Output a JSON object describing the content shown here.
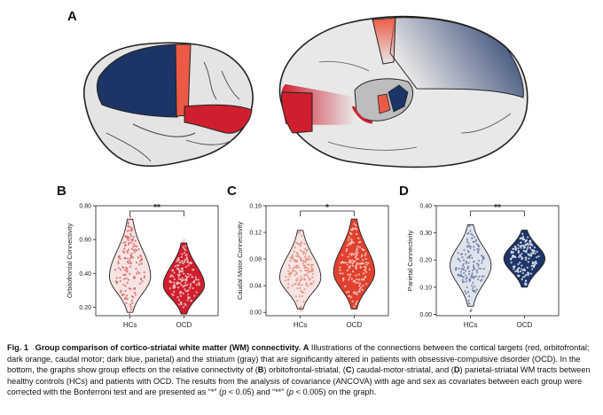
{
  "panels": {
    "a": "A",
    "b": "B",
    "c": "C",
    "d": "D"
  },
  "colors": {
    "orbitofrontal": "#cf1f2e",
    "caudal_motor": "#ea5a46",
    "parietal": "#1d3466",
    "striatum": "#b8b8b8",
    "hc_violin": "#f6e4e2",
    "hc_violin_d": "#dfe3ec",
    "brain_base": "#e4e4e4"
  },
  "chart_data": [
    {
      "type": "violin",
      "panel": "B",
      "ylabel": "Orbitofrontal Connectivity",
      "categories": [
        "HCs",
        "OCD"
      ],
      "ylim": [
        0.15,
        0.8
      ],
      "yticks": [
        "0.20",
        "0.40",
        "0.60",
        "0.80"
      ],
      "ytick_values": [
        0.2,
        0.4,
        0.6,
        0.8
      ],
      "series": [
        {
          "name": "HCs",
          "median": 0.38,
          "min": 0.17,
          "max": 0.72,
          "color": "#f6e4e2",
          "dot": "#d76a6a"
        },
        {
          "name": "OCD",
          "median": 0.33,
          "min": 0.16,
          "max": 0.58,
          "color": "#cf1f2e",
          "dot": "#f1c4c4"
        }
      ],
      "significance": "**"
    },
    {
      "type": "violin",
      "panel": "C",
      "ylabel": "Caudal Motor Connectivity",
      "categories": [
        "HCs",
        "OCD"
      ],
      "ylim": [
        -0.005,
        0.16
      ],
      "yticks": [
        "0.00",
        "0.04",
        "0.08",
        "0.12",
        "0.16"
      ],
      "ytick_values": [
        0,
        0.04,
        0.08,
        0.12,
        0.16
      ],
      "series": [
        {
          "name": "HCs",
          "median": 0.052,
          "min": 0.005,
          "max": 0.123,
          "color": "#f6e4e2",
          "dot": "#e08f80"
        },
        {
          "name": "OCD",
          "median": 0.06,
          "min": 0.005,
          "max": 0.14,
          "color": "#e0412f",
          "dot": "#f6d0c6"
        }
      ],
      "significance": "*"
    },
    {
      "type": "violin",
      "panel": "D",
      "ylabel": "Parietal Connectivity",
      "categories": [
        "HCs",
        "OCD"
      ],
      "ylim": [
        -0.005,
        0.4
      ],
      "yticks": [
        "0.00",
        "0.10",
        "0.20",
        "0.30",
        "0.40"
      ],
      "ytick_values": [
        0,
        0.1,
        0.2,
        0.3,
        0.4
      ],
      "series": [
        {
          "name": "HCs",
          "median": 0.18,
          "min": 0.03,
          "max": 0.33,
          "color": "#dfe3ec",
          "dot": "#6d7fa6"
        },
        {
          "name": "OCD",
          "median": 0.205,
          "min": 0.1,
          "max": 0.31,
          "color": "#1d3466",
          "dot": "#dfe6f5"
        }
      ],
      "significance": "**"
    }
  ],
  "caption": {
    "fig": "Fig. 1",
    "title": "Group comparison of cortico-striatal white matter (WM) connectivity.",
    "text_a_label": "A",
    "text_1": "Illustrations of the connections between the cortical targets (red, orbitofrontal; dark orange, caudal motor; dark blue, parietal) and the striatum (gray) that are significantly altered in patients with obsessive-compulsive disorder (OCD). In the bottom, the graphs show group effects on the relative connectivity of (",
    "b_label": "B",
    "text_2": ") orbitofrontal-striatal, (",
    "c_label": "C",
    "text_3": ") caudal-motor-striatal, and (",
    "d_label": "D",
    "text_4": ") parietal-striatal WM tracts between healthy controls (HCs) and patients with OCD. The results from the analysis of covariance (ANCOVA) with age and sex as covariates between each group were corrected with the Bonferroni test and are presented as “*” (",
    "p1": "p",
    "text_5": " < 0.05) and “**” (",
    "p2": "p",
    "text_6": " < 0.005) on the graph."
  }
}
